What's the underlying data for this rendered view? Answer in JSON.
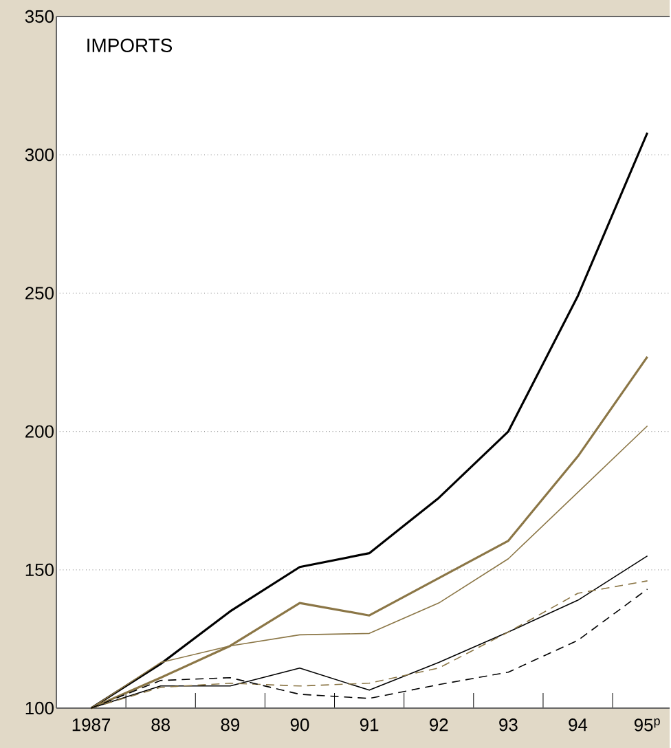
{
  "chart_data": {
    "type": "line",
    "title": "IMPORTS",
    "categories": [
      "1987",
      "88",
      "89",
      "90",
      "91",
      "92",
      "93",
      "94",
      "95$^{p}$"
    ],
    "series": [
      {
        "color": "#000000",
        "line_style": "solid",
        "values": [
          100,
          116,
          135,
          151,
          156,
          176,
          200,
          249,
          308
        ]
      },
      {
        "color": "#8b7646",
        "line_style": "solid",
        "values": [
          100,
          111,
          122.5,
          138,
          133.5,
          147,
          160.5,
          191,
          227
        ]
      },
      {
        "color": "#8b7646",
        "line_style": "solid",
        "values": [
          100,
          116.5,
          122.5,
          126.5,
          127,
          138,
          154,
          178,
          202
        ]
      },
      {
        "color": "#000000",
        "line_style": "solid",
        "values": [
          100,
          108,
          108,
          114.5,
          106.5,
          116.5,
          127.5,
          139,
          155
        ]
      },
      {
        "color": "#8b7646",
        "line_style": "dashed",
        "values": [
          100,
          107.5,
          109,
          108,
          109,
          114.5,
          127.5,
          141.5,
          146
        ]
      },
      {
        "color": "#000000",
        "line_style": "dashed",
        "values": [
          100,
          110,
          111,
          105,
          103.5,
          108.5,
          113,
          124.5,
          143
        ]
      }
    ],
    "ylim": [
      100,
      350
    ],
    "yticks": [
      100,
      150,
      200,
      250,
      300,
      350
    ],
    "grid": "y"
  }
}
